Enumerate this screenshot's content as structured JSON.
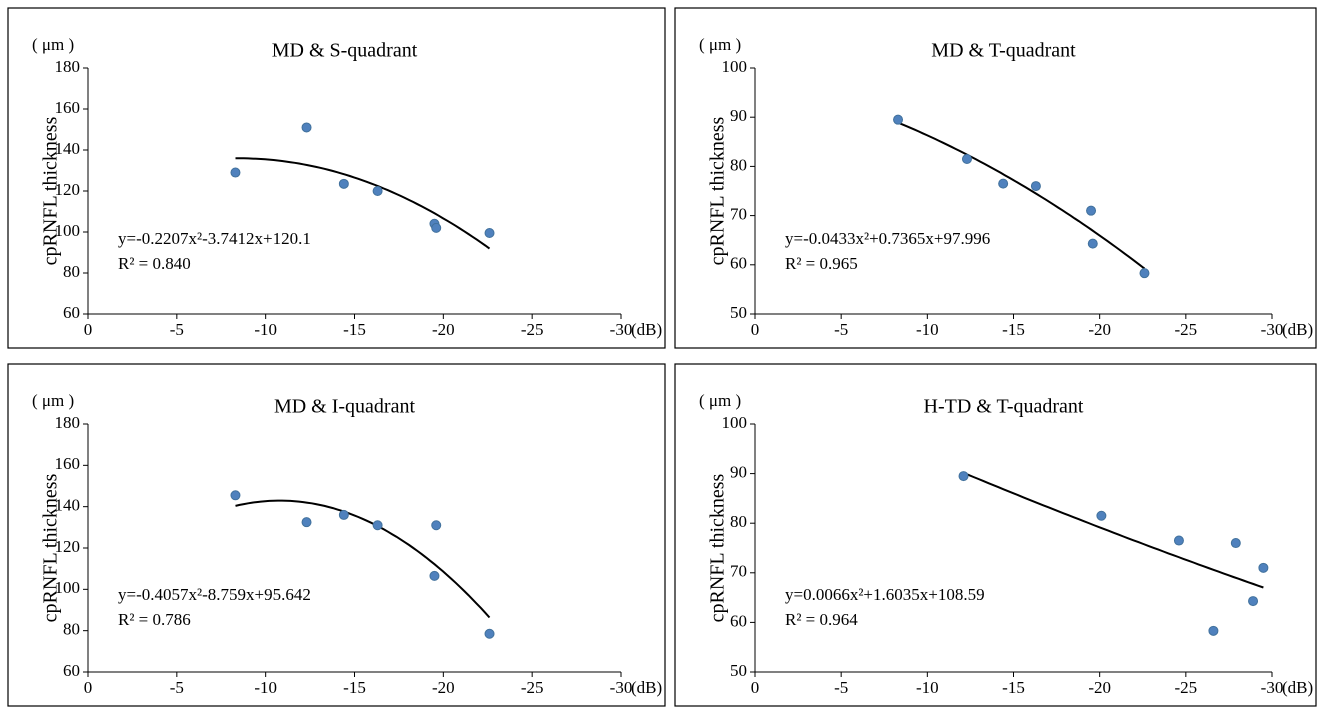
{
  "chart_data": [
    {
      "type": "scatter",
      "title": "MD & S-quadrant",
      "y_unit": "( μm )",
      "ylabel": "cpRNFL thickness",
      "x_unit": "(dB)",
      "x": [
        -8.3,
        -12.3,
        -14.4,
        -16.3,
        -19.5,
        -19.6,
        -22.6
      ],
      "values": [
        129,
        151,
        123.5,
        120,
        104,
        102,
        99.5
      ],
      "color": "#4f81bd",
      "xlim": [
        0,
        -30
      ],
      "xticks": [
        0,
        -5,
        -10,
        -15,
        -20,
        -25,
        -30
      ],
      "ylim": [
        60,
        180
      ],
      "yticks": [
        60,
        80,
        100,
        120,
        140,
        160,
        180
      ],
      "grid": false,
      "trendline": {
        "coefficients": [
          -0.2207,
          -3.7412,
          120.1
        ],
        "equation": "y=-0.2207x²-3.7412x+120.1",
        "r2": "R² = 0.840"
      }
    },
    {
      "type": "scatter",
      "title": "MD & T-quadrant",
      "y_unit": "( μm )",
      "ylabel": "cpRNFL thickness",
      "x_unit": "(dB)",
      "x": [
        -8.3,
        -12.3,
        -14.4,
        -16.3,
        -19.5,
        -19.6,
        -22.6
      ],
      "values": [
        89.5,
        81.5,
        76.5,
        76,
        71,
        64.3,
        58.3
      ],
      "color": "#4f81bd",
      "xlim": [
        0,
        -30
      ],
      "xticks": [
        0,
        -5,
        -10,
        -15,
        -20,
        -25,
        -30
      ],
      "ylim": [
        50,
        100
      ],
      "yticks": [
        50,
        60,
        70,
        80,
        90,
        100
      ],
      "grid": false,
      "trendline": {
        "coefficients": [
          -0.0433,
          0.7365,
          97.996
        ],
        "equation": "y=-0.0433x²+0.7365x+97.996",
        "r2": "R² = 0.965"
      }
    },
    {
      "type": "scatter",
      "title": "MD & I-quadrant",
      "y_unit": "( μm )",
      "ylabel": "cpRNFL thickness",
      "x_unit": "(dB)",
      "x": [
        -8.3,
        -12.3,
        -14.4,
        -16.3,
        -19.5,
        -19.6,
        -22.6
      ],
      "values": [
        145.5,
        132.5,
        136,
        131,
        106.5,
        131,
        78.5
      ],
      "color": "#4f81bd",
      "xlim": [
        0,
        -30
      ],
      "xticks": [
        0,
        -5,
        -10,
        -15,
        -20,
        -25,
        -30
      ],
      "ylim": [
        60,
        180
      ],
      "yticks": [
        60,
        80,
        100,
        120,
        140,
        160,
        180
      ],
      "grid": false,
      "trendline": {
        "coefficients": [
          -0.4057,
          -8.759,
          95.642
        ],
        "equation": "y=-0.4057x²-8.759x+95.642",
        "r2": "R² = 0.786"
      }
    },
    {
      "type": "scatter",
      "title": "H-TD & T-quadrant",
      "y_unit": "( μm )",
      "ylabel": "cpRNFL thickness",
      "x_unit": "(dB)",
      "x": [
        -12.1,
        -20.1,
        -24.6,
        -26.6,
        -27.9,
        -28.9,
        -29.5
      ],
      "values": [
        89.5,
        81.5,
        76.5,
        58.3,
        76,
        64.3,
        71
      ],
      "color": "#4f81bd",
      "xlim": [
        0,
        -30
      ],
      "xticks": [
        0,
        -5,
        -10,
        -15,
        -20,
        -25,
        -30
      ],
      "ylim": [
        50,
        100
      ],
      "yticks": [
        50,
        60,
        70,
        80,
        90,
        100
      ],
      "grid": false,
      "trendline": {
        "coefficients": [
          0.0066,
          1.6035,
          108.59
        ],
        "equation": "y=0.0066x²+1.6035x+108.59",
        "r2": "R² = 0.964"
      }
    }
  ]
}
